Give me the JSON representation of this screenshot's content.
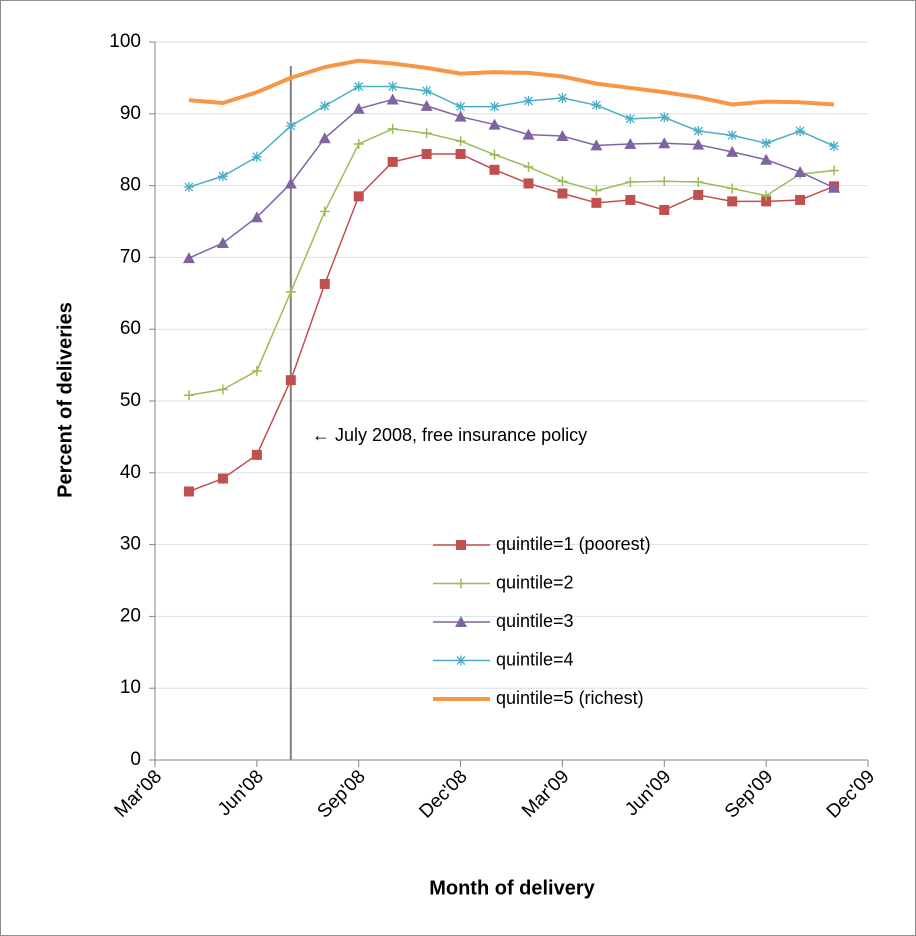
{
  "chart_data": {
    "type": "line",
    "x_label": "Month of delivery",
    "y_label": "Percent of deliveries",
    "x": [
      "2008-04",
      "2008-05",
      "2008-06",
      "2008-07",
      "2008-08",
      "2008-09",
      "2008-10",
      "2008-11",
      "2008-12",
      "2009-01",
      "2009-02",
      "2009-03",
      "2009-04",
      "2009-05",
      "2009-06",
      "2009-07",
      "2009-08",
      "2009-09",
      "2009-10",
      "2009-11"
    ],
    "xlim": [
      "2008-03",
      "2009-12"
    ],
    "xticks": [
      {
        "value": "2008-03",
        "label": "Mar'08"
      },
      {
        "value": "2008-06",
        "label": "Jun'08"
      },
      {
        "value": "2008-09",
        "label": "Sep'08"
      },
      {
        "value": "2008-12",
        "label": "Dec'08"
      },
      {
        "value": "2009-03",
        "label": "Mar'09"
      },
      {
        "value": "2009-06",
        "label": "Jun'09"
      },
      {
        "value": "2009-09",
        "label": "Sep'09"
      },
      {
        "value": "2009-12",
        "label": "Dec'09"
      }
    ],
    "ylim": [
      0,
      100
    ],
    "yticks": [
      0,
      10,
      20,
      30,
      40,
      50,
      60,
      70,
      80,
      90,
      100
    ],
    "grid": true,
    "annotation": {
      "x": "2008-07",
      "text": "← July 2008, free insurance policy"
    },
    "series": [
      {
        "name": "quintile=1 (poorest)",
        "color": "#c0504d",
        "marker": "square",
        "values": [
          37.4,
          39.2,
          42.5,
          52.9,
          66.3,
          78.5,
          83.3,
          84.4,
          84.4,
          82.2,
          80.3,
          78.9,
          77.6,
          78.0,
          76.6,
          78.7,
          77.8,
          77.8,
          78.0,
          79.9
        ]
      },
      {
        "name": "quintile=2",
        "color": "#9bbb59",
        "marker": "plus",
        "values": [
          50.8,
          51.6,
          54.2,
          65.2,
          76.4,
          85.8,
          87.9,
          87.3,
          86.2,
          84.3,
          82.6,
          80.6,
          79.3,
          80.5,
          80.6,
          80.5,
          79.6,
          78.6,
          81.6,
          82.1
        ]
      },
      {
        "name": "quintile=3",
        "color": "#8064a2",
        "marker": "triangle",
        "values": [
          69.9,
          72.0,
          75.6,
          80.3,
          86.6,
          90.7,
          92.0,
          91.1,
          89.6,
          88.5,
          87.1,
          86.9,
          85.6,
          85.8,
          85.9,
          85.7,
          84.7,
          83.6,
          81.9,
          79.7
        ]
      },
      {
        "name": "quintile=4",
        "color": "#4bacc6",
        "marker": "asterisk",
        "values": [
          79.8,
          81.3,
          84.0,
          88.3,
          91.1,
          93.8,
          93.8,
          93.2,
          91.0,
          91.0,
          91.8,
          92.2,
          91.2,
          89.3,
          89.5,
          87.6,
          87.0,
          85.9,
          87.6,
          85.5
        ]
      },
      {
        "name": "quintile=5 (richest)",
        "color": "#f79646",
        "marker": "none",
        "values": [
          91.9,
          91.5,
          93.0,
          95.0,
          96.5,
          97.4,
          97.0,
          96.4,
          95.6,
          95.8,
          95.7,
          95.2,
          94.2,
          93.6,
          93.0,
          92.3,
          91.3,
          91.7,
          91.6,
          91.3
        ]
      }
    ]
  }
}
